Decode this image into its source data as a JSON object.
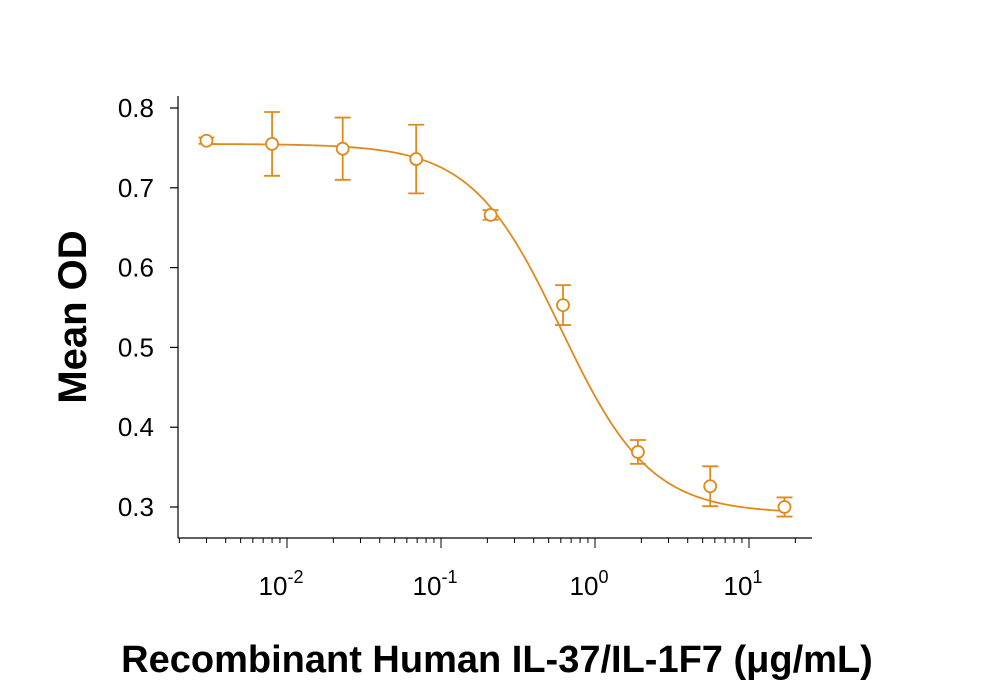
{
  "chart_data": {
    "type": "scatter",
    "xlabel": "Recombinant Human IL-37/IL-1F7 (μg/mL)",
    "ylabel": "Mean OD",
    "x_scale": "log",
    "xlim": [
      0.0019,
      25
    ],
    "ylim": [
      0.27,
      0.81
    ],
    "y_ticks": [
      0.3,
      0.4,
      0.5,
      0.6,
      0.7,
      0.8
    ],
    "y_tick_labels": [
      "0.3",
      "0.4",
      "0.5",
      "0.6",
      "0.7",
      "0.8"
    ],
    "x_ticks": [
      {
        "value": 0.01,
        "base": "10",
        "exp": "-2"
      },
      {
        "value": 0.1,
        "base": "10",
        "exp": "-1"
      },
      {
        "value": 1,
        "base": "10",
        "exp": "0"
      },
      {
        "value": 10,
        "base": "10",
        "exp": "1"
      }
    ],
    "color": "#E08A1E",
    "points": [
      {
        "x": 0.003,
        "y": 0.759,
        "err": 0.004
      },
      {
        "x": 0.008,
        "y": 0.755,
        "err": 0.04
      },
      {
        "x": 0.023,
        "y": 0.749,
        "err": 0.039
      },
      {
        "x": 0.069,
        "y": 0.736,
        "err": 0.043
      },
      {
        "x": 0.21,
        "y": 0.666,
        "err": 0.006
      },
      {
        "x": 0.62,
        "y": 0.553,
        "err": 0.025
      },
      {
        "x": 1.9,
        "y": 0.369,
        "err": 0.015
      },
      {
        "x": 5.6,
        "y": 0.326,
        "err": 0.025
      },
      {
        "x": 17,
        "y": 0.3,
        "err": 0.012
      }
    ],
    "fit": {
      "top": 0.755,
      "bottom": 0.292,
      "ec50": 0.6,
      "hill": 1.5
    }
  }
}
